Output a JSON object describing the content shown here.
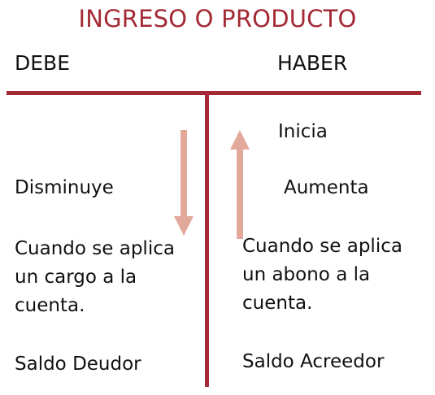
{
  "title": "INGRESO O PRODUCTO",
  "left": {
    "header": "DEBE",
    "movement": "Disminuye",
    "description_lines": [
      "Cuando se aplica",
      "un cargo a la",
      "cuenta."
    ],
    "balance": "Saldo Deudor",
    "arrow": "down-arrow-icon"
  },
  "right": {
    "header": "HABER",
    "start": "Inicia",
    "movement": "Aumenta",
    "description_lines": [
      "Cuando se aplica",
      "un abono a la",
      "cuenta."
    ],
    "balance": "Saldo Acreedor",
    "arrow": "up-arrow-icon"
  },
  "colors": {
    "accent": "#a32a35",
    "arrow": "#e2a89a",
    "text": "#111111"
  }
}
